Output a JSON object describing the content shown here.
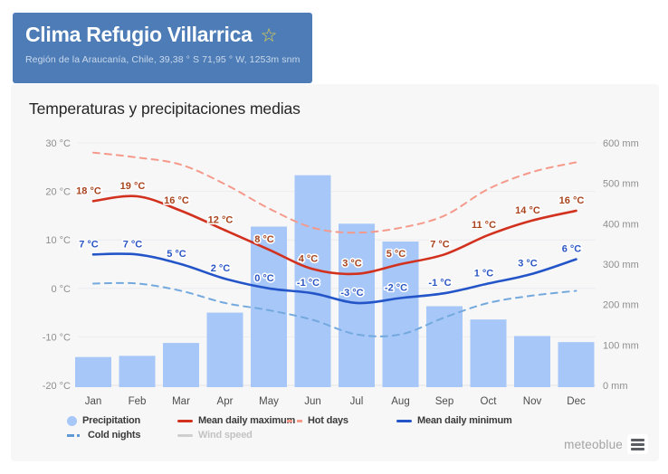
{
  "header": {
    "title": "Clima Refugio Villarrica",
    "star_icon": "☆",
    "subtitle": "Región de la Araucanía, Chile, 39,38 ° S 71,95 ° W, 1253m snm",
    "bg_color": "#4d7cb7"
  },
  "section": {
    "title": "Temperaturas y precipitaciones medias"
  },
  "chart_data": {
    "type": "bar",
    "title": "Temperaturas y precipitaciones medias",
    "categories": [
      "Jan",
      "Feb",
      "Mar",
      "Apr",
      "May",
      "Jun",
      "Jul",
      "Aug",
      "Sep",
      "Oct",
      "Nov",
      "Dec"
    ],
    "precipitation": {
      "name": "Precipitation",
      "unit": "mm",
      "color": "#a6c7f7",
      "values": [
        70,
        73,
        105,
        180,
        393,
        520,
        400,
        356,
        196,
        163,
        122,
        107
      ]
    },
    "series": [
      {
        "name": "Hot days",
        "style": "dashed",
        "color": "#f59a8b",
        "unit": "°C",
        "show_point_labels": false,
        "values": [
          28,
          27,
          25.5,
          21.5,
          16.5,
          12.5,
          11.5,
          12.5,
          15,
          20.5,
          24,
          26
        ]
      },
      {
        "name": "Cold nights",
        "style": "dashed",
        "color": "#74a9de",
        "unit": "°C",
        "show_point_labels": false,
        "values": [
          1,
          1,
          -0.5,
          -3,
          -4.5,
          -6.5,
          -9.5,
          -9.5,
          -6,
          -3,
          -1.5,
          -0.5
        ]
      },
      {
        "name": "Mean daily maximum",
        "style": "solid",
        "color": "#d2311e",
        "label_color": "#a8431d",
        "unit": "°C",
        "show_point_labels": true,
        "values": [
          18,
          19,
          16,
          12,
          8,
          4,
          3,
          5,
          7,
          11,
          14,
          16
        ]
      },
      {
        "name": "Mean daily minimum",
        "style": "solid",
        "color": "#2355c8",
        "label_color": "#2a55c4",
        "unit": "°C",
        "show_point_labels": true,
        "values": [
          7,
          7,
          5,
          2,
          0,
          -1,
          -3,
          -2,
          -1,
          1,
          3,
          6
        ]
      },
      {
        "name": "Wind speed",
        "style": "solid",
        "color": "#c9c9c9",
        "unit": "",
        "show_point_labels": false,
        "disabled": true,
        "values": []
      }
    ],
    "y_axis_left": {
      "unit": "°C",
      "ticks": [
        30,
        20,
        10,
        0,
        -10,
        -20
      ],
      "tick_labels": [
        "30 °C",
        "20 °C",
        "10 °C",
        "0 °C",
        "-10 °C",
        "-20 °C"
      ],
      "range": [
        -20,
        30
      ]
    },
    "y_axis_right": {
      "unit": "mm",
      "ticks": [
        600,
        500,
        400,
        300,
        200,
        100,
        0
      ],
      "tick_labels": [
        "600 mm",
        "500 mm",
        "400 mm",
        "300 mm",
        "200 mm",
        "100 mm",
        "0 mm"
      ],
      "range": [
        0,
        600
      ]
    },
    "grid": true,
    "legend_position": "bottom"
  },
  "legend": {
    "items": [
      {
        "label": "Precipitation",
        "marker": "circle",
        "color": "#a6c7f7",
        "row": 1,
        "col": 0
      },
      {
        "label": "Mean daily maximum",
        "marker": "line",
        "color": "#d2311e",
        "row": 1,
        "col": 1
      },
      {
        "label": "Hot days",
        "marker": "dash",
        "color": "#f59a8b",
        "row": 1,
        "col": 2
      },
      {
        "label": "Mean daily minimum",
        "marker": "line",
        "color": "#2355c8",
        "row": 1,
        "col": 3
      },
      {
        "label": "Cold nights",
        "marker": "dashdot",
        "color": "#5f9ad6",
        "row": 2,
        "col": 0
      },
      {
        "label": "Wind speed",
        "marker": "line",
        "color": "#cfcfcf",
        "row": 2,
        "col": 1,
        "disabled": true
      }
    ]
  },
  "footer": {
    "brand": "meteoblue",
    "menu_icon": "hamburger"
  }
}
